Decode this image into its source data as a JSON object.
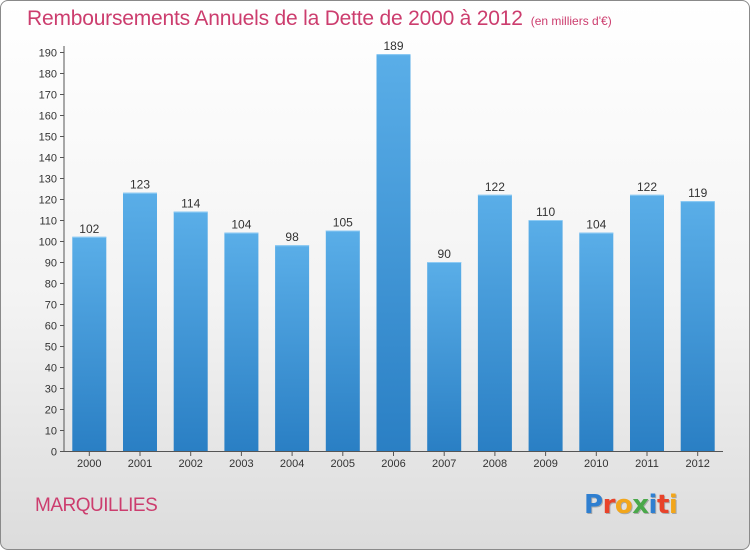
{
  "header": {
    "title": "Remboursements Annuels de la Dette de 2000 à 2012",
    "subtitle": "(en milliers d'€)"
  },
  "footer": {
    "city": "MARQUILLIES",
    "logo_text": "Proxiti"
  },
  "colors": {
    "title": "#cc3d6e",
    "bar_top": "#5aaee8",
    "bar_bottom": "#2a7fc4",
    "axis": "#555555"
  },
  "chart_data": {
    "type": "bar",
    "title": "Remboursements Annuels de la Dette de 2000 à 2012",
    "xlabel": "",
    "ylabel": "",
    "categories": [
      "2000",
      "2001",
      "2002",
      "2003",
      "2004",
      "2005",
      "2006",
      "2007",
      "2008",
      "2009",
      "2010",
      "2011",
      "2012"
    ],
    "values": [
      102,
      123,
      114,
      104,
      98,
      105,
      189,
      90,
      122,
      110,
      104,
      122,
      119
    ],
    "ylim": [
      0,
      190
    ],
    "yticks": [
      0,
      10,
      20,
      30,
      40,
      50,
      60,
      70,
      80,
      90,
      100,
      110,
      120,
      130,
      140,
      150,
      160,
      170,
      180,
      190
    ],
    "grid": false,
    "data_labels": true
  }
}
